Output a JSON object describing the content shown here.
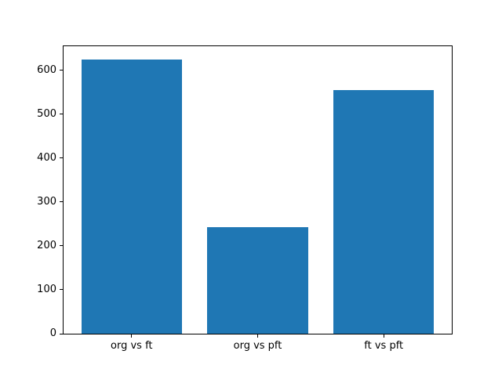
{
  "figure": {
    "background": "#ffffff",
    "spine_color": "#000000",
    "tick_color": "#000000",
    "text_color": "#000000"
  },
  "chart_data": {
    "type": "bar",
    "title": "",
    "xlabel": "",
    "ylabel": "",
    "categories": [
      "org vs ft",
      "org vs pft",
      "ft vs pft"
    ],
    "values": [
      624,
      242,
      555
    ],
    "bar_color": "#1f77b4",
    "bar_width": 0.8,
    "x_positions": [
      0,
      1,
      2
    ],
    "xlim": [
      -0.54,
      2.54
    ],
    "ylim": [
      0,
      655
    ],
    "yticks": [
      0,
      100,
      200,
      300,
      400,
      500,
      600
    ],
    "grid": false,
    "legend": "none"
  }
}
